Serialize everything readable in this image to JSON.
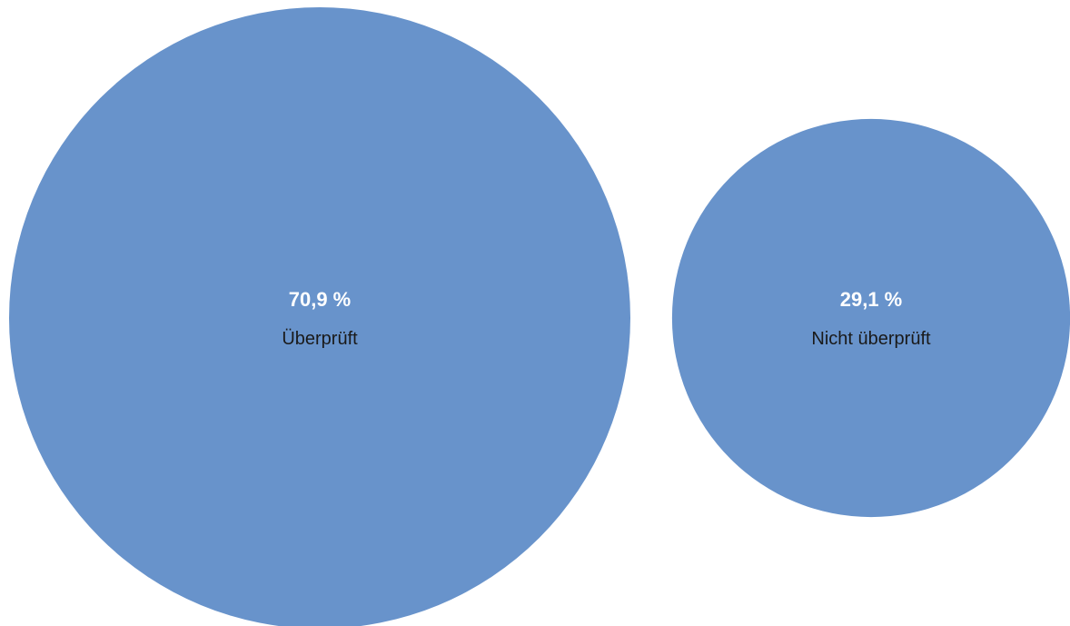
{
  "chart_data": {
    "type": "bubble",
    "title": "",
    "colors": {
      "bubble": "#6893cb",
      "value_text": "#ffffff",
      "label_text": "#1a1a1a"
    },
    "items": [
      {
        "label": "Überprüft",
        "value": 70.9,
        "value_text": "70,9 %"
      },
      {
        "label": "Nicht überprüft",
        "value": 29.1,
        "value_text": "29,1 %"
      }
    ]
  }
}
